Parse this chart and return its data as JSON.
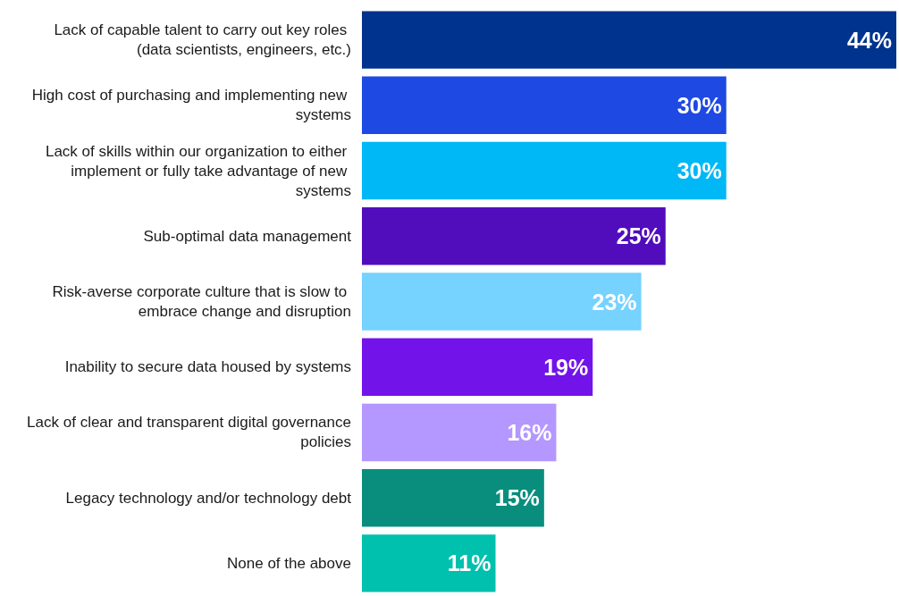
{
  "chart_data": {
    "type": "bar",
    "orientation": "horizontal",
    "categories": [
      "Lack of capable talent to carry out key roles (data scientists, engineers, etc.)",
      "High cost of purchasing and implementing new systems",
      "Lack of skills within our organization to either implement or fully take advantage of new systems",
      "Sub-optimal data management",
      "Risk-averse corporate culture that is slow to embrace change and disruption",
      "Inability to secure data housed by systems",
      "Lack of clear and transparent digital governance policies",
      "Legacy technology and/or technology debt",
      "None of the above"
    ],
    "values": [
      44,
      30,
      30,
      25,
      23,
      19,
      16,
      15,
      11
    ],
    "colors": [
      "#00338d",
      "#1e49e2",
      "#00b8f5",
      "#510dbc",
      "#76d2ff",
      "#7213ea",
      "#b497ff",
      "#098e7e",
      "#00c0ae"
    ],
    "value_labels": [
      "44%",
      "30%",
      "30%",
      "25%",
      "23%",
      "19%",
      "16%",
      "15%",
      "11%"
    ]
  }
}
